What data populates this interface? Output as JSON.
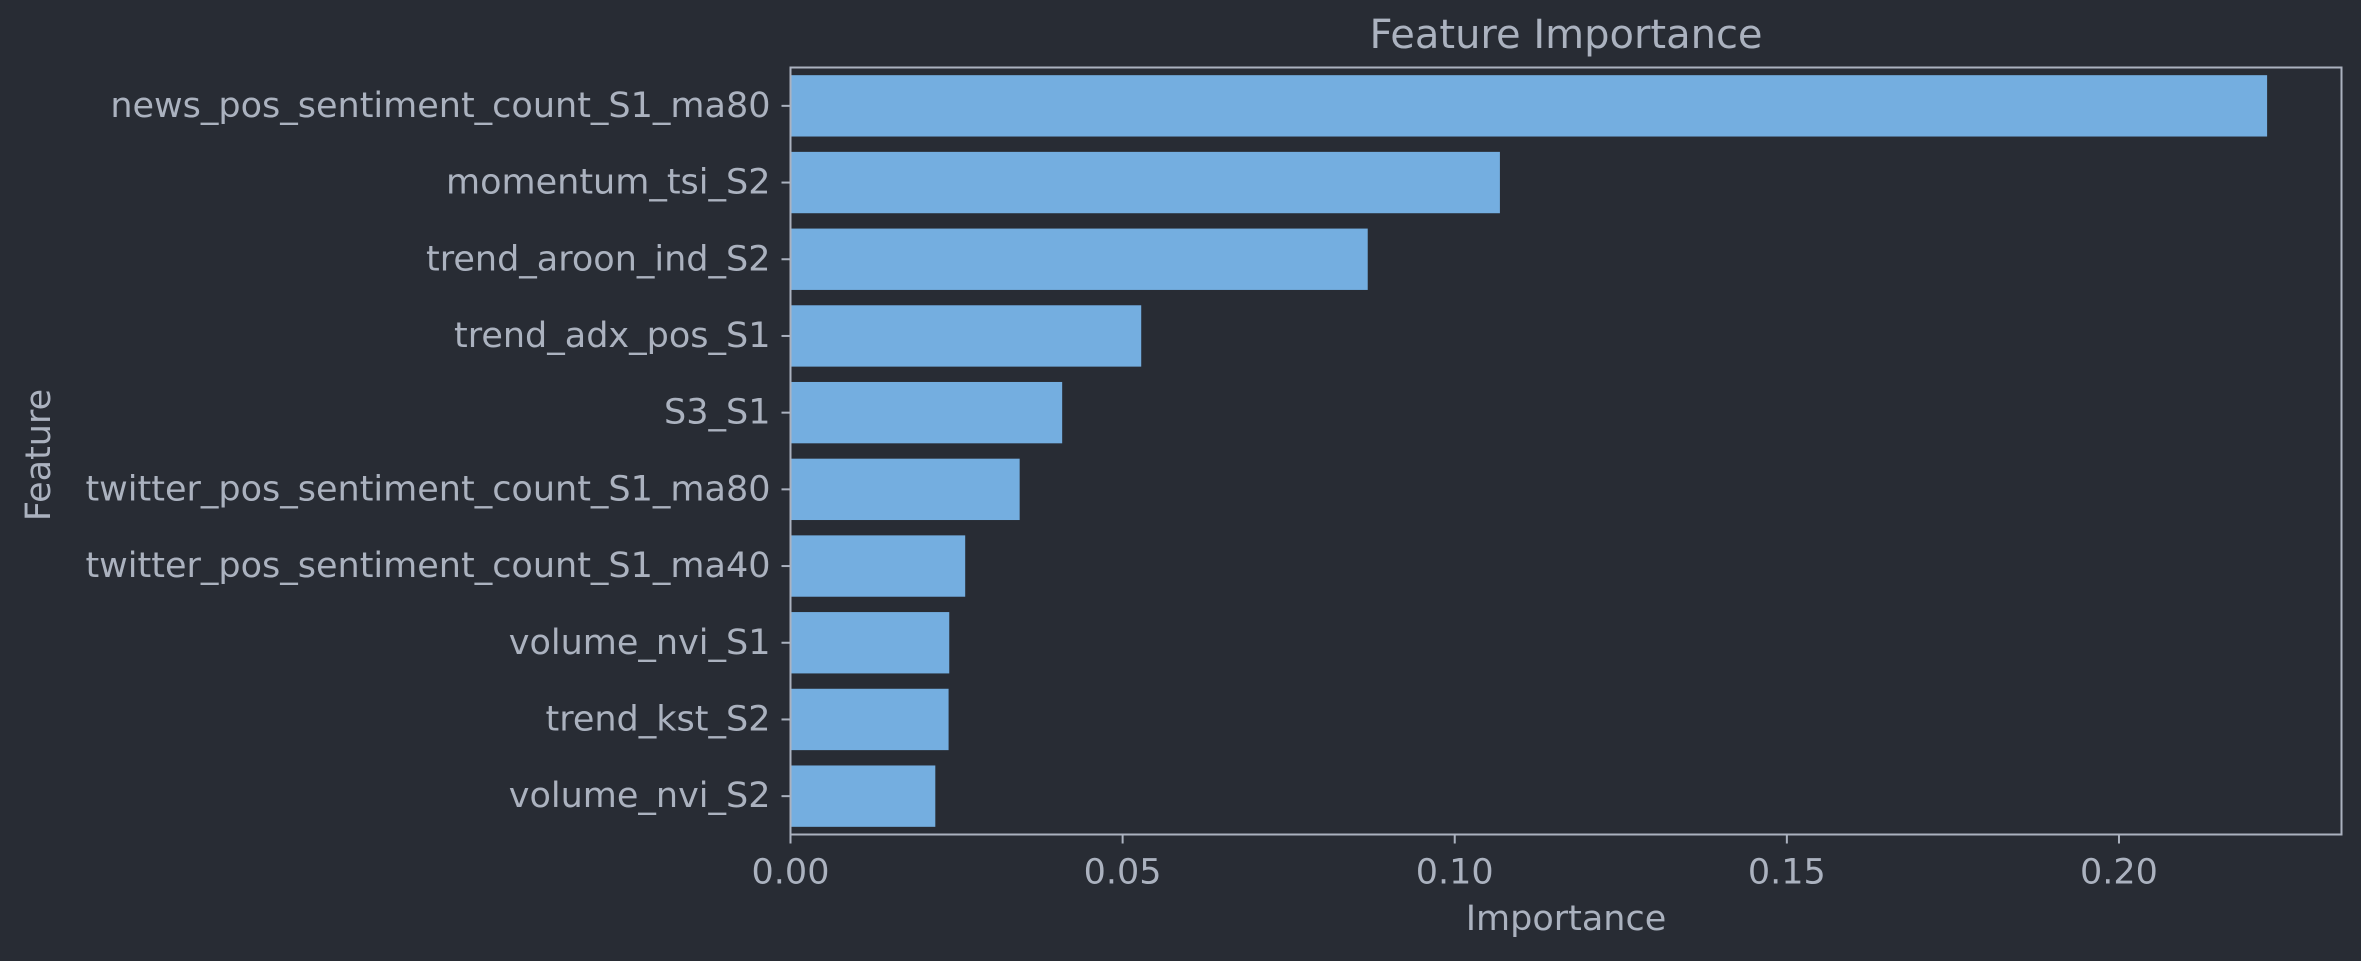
{
  "chart_data": {
    "type": "bar",
    "orientation": "horizontal",
    "title": "Feature Importance",
    "xlabel": "Importance",
    "ylabel": "Feature",
    "categories": [
      "news_pos_sentiment_count_S1_ma80",
      "momentum_tsi_S2",
      "trend_aroon_ind_S2",
      "trend_adx_pos_S1",
      "S3_S1",
      "twitter_pos_sentiment_count_S1_ma80",
      "twitter_pos_sentiment_count_S1_ma40",
      "volume_nvi_S1",
      "trend_kst_S2",
      "volume_nvi_S2"
    ],
    "values": [
      0.2223,
      0.1068,
      0.0869,
      0.0528,
      0.0409,
      0.0345,
      0.0263,
      0.0239,
      0.0238,
      0.0218
    ],
    "xlim": [
      0,
      0.2335
    ],
    "xticks": [
      0,
      0.05,
      0.1,
      0.15,
      0.2
    ],
    "xtick_labels": [
      "0.00",
      "0.05",
      "0.10",
      "0.15",
      "0.20"
    ],
    "grid": false,
    "legend": "none",
    "colors": {
      "background": "#282c34",
      "bar": "#74aee0",
      "text": "#abb2bf",
      "axis": "#abb2bf"
    }
  }
}
